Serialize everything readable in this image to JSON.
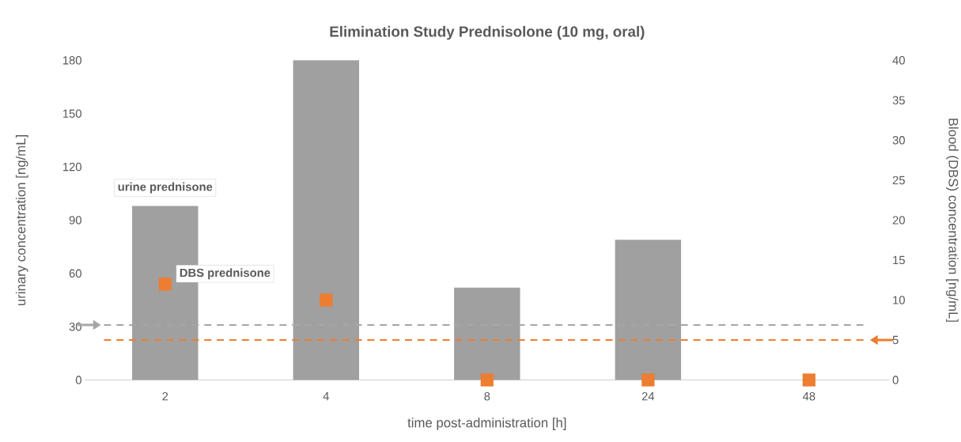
{
  "chart_data": {
    "type": "bar",
    "title": "Elimination Study Prednisolone (10 mg, oral)",
    "xlabel": "time post-administration [h]",
    "ylabel": "urinary concentration [ng/mL]",
    "y2label": "Blood (DBS) concentration [ng/mL]",
    "categories": [
      "2",
      "4",
      "8",
      "24",
      "48"
    ],
    "series": [
      {
        "name": "urine prednisone",
        "color": "#a0a0a0",
        "values": [
          98,
          180,
          52,
          79,
          0
        ]
      },
      {
        "name": "DBS prednisone",
        "type": "scatter",
        "axis": "y2",
        "color": "#ed7d31",
        "values": [
          12,
          10,
          0,
          0,
          0
        ]
      }
    ],
    "ylim": [
      0,
      180
    ],
    "yticks": [
      0,
      30,
      60,
      90,
      120,
      150,
      180
    ],
    "y2lim": [
      0,
      40
    ],
    "y2ticks": [
      0,
      5,
      10,
      15,
      20,
      25,
      30,
      35,
      40
    ],
    "ref_lines": [
      {
        "axis": "y",
        "value": 31,
        "color": "#a6a6a6",
        "line_style": "dashed"
      },
      {
        "axis": "y2",
        "value": 5,
        "color": "#ed7d31",
        "line_style": "dashed"
      }
    ],
    "marker": "square",
    "grid": false
  }
}
